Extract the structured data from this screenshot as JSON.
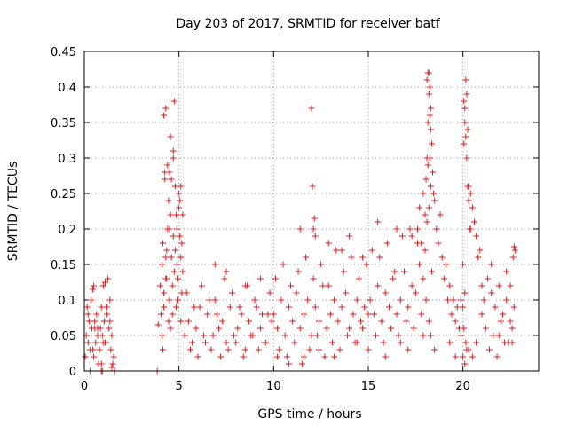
{
  "chart_data": {
    "type": "scatter",
    "title": "Day 203 of 2017, SRMTID for receiver batf",
    "xlabel": "GPS time / hours",
    "ylabel": "SRMTID / TECUs",
    "xlim": [
      0,
      24
    ],
    "ylim": [
      0,
      0.45
    ],
    "xticks": [
      0,
      5,
      10,
      15,
      20
    ],
    "xtick_labels": [
      "0",
      "5",
      "10",
      "15",
      "20"
    ],
    "yticks": [
      0,
      0.05,
      0.1,
      0.15,
      0.2,
      0.25,
      0.3,
      0.35,
      0.4,
      0.45
    ],
    "ytick_labels": [
      "0",
      "0.05",
      "0.1",
      "0.15",
      "0.2",
      "0.25",
      "0.3",
      "0.35",
      "0.4",
      "0.45"
    ],
    "grid": true,
    "marker": "plus",
    "color": "#e41a1c",
    "series": [
      {
        "name": "SRMTID",
        "x": [
          0.05,
          0.1,
          0.15,
          0.2,
          0.25,
          0.3,
          0.35,
          0.4,
          0.45,
          0.5,
          0.55,
          0.6,
          0.65,
          0.7,
          0.75,
          0.8,
          0.85,
          0.9,
          0.95,
          1.0,
          1.05,
          1.1,
          1.15,
          1.2,
          1.25,
          1.3,
          1.35,
          1.4,
          1.45,
          1.5,
          1.55,
          0.2,
          0.45,
          0.5,
          0.55,
          1.0,
          1.2,
          1.35,
          0.3,
          0.7,
          0.9,
          1.1,
          1.6,
          0.9,
          0.95,
          1.45,
          1.5,
          3.85,
          3.9,
          4.0,
          4.05,
          4.1,
          4.15,
          4.2,
          4.25,
          4.3,
          4.35,
          4.4,
          4.45,
          4.5,
          4.55,
          4.6,
          4.65,
          4.7,
          4.75,
          4.8,
          4.85,
          4.9,
          4.95,
          5.0,
          5.05,
          5.1,
          5.15,
          5.2,
          4.2,
          4.25,
          4.3,
          4.4,
          4.45,
          4.5,
          4.55,
          4.6,
          4.7,
          4.75,
          4.8,
          4.85,
          4.9,
          5.0,
          5.05,
          5.1,
          5.15,
          4.1,
          4.2,
          4.35,
          4.55,
          4.65,
          4.95,
          5.1,
          4.15,
          4.3,
          4.5,
          4.7,
          4.9,
          5.2,
          5.3,
          5.5,
          5.7,
          5.9,
          6.1,
          6.3,
          6.5,
          6.7,
          6.9,
          7.1,
          7.3,
          7.5,
          7.7,
          7.9,
          8.1,
          8.3,
          8.5,
          8.7,
          8.9,
          9.1,
          9.3,
          9.5,
          9.7,
          9.9,
          5.4,
          5.8,
          6.2,
          6.6,
          7.0,
          7.4,
          7.8,
          8.2,
          8.6,
          9.0,
          9.4,
          9.8,
          5.6,
          6.0,
          6.4,
          6.8,
          7.2,
          7.6,
          8.0,
          8.4,
          8.8,
          9.2,
          9.6,
          6.9,
          7.5,
          8.5,
          9.3,
          10.0,
          10.2,
          10.4,
          10.6,
          10.8,
          11.0,
          11.2,
          11.4,
          11.6,
          11.8,
          12.0,
          12.2,
          12.4,
          12.6,
          12.8,
          13.0,
          13.2,
          13.4,
          13.6,
          13.8,
          14.0,
          14.2,
          14.4,
          14.6,
          14.8,
          15.0,
          10.1,
          10.5,
          10.9,
          11.3,
          11.7,
          12.1,
          12.5,
          12.9,
          13.3,
          13.7,
          14.1,
          14.5,
          14.9,
          10.3,
          10.7,
          11.1,
          11.5,
          11.9,
          12.3,
          12.7,
          13.1,
          13.5,
          13.9,
          14.3,
          14.7,
          12.0,
          12.05,
          12.1,
          12.15,
          12.2,
          11.4,
          12.9,
          13.6,
          14.0,
          14.7,
          10.2,
          10.8,
          11.6,
          12.4,
          13.2,
          14.4,
          15.1,
          15.3,
          15.5,
          15.7,
          15.9,
          16.1,
          16.3,
          16.5,
          16.7,
          16.9,
          17.1,
          17.3,
          17.5,
          17.7,
          17.9,
          15.2,
          15.6,
          16.0,
          16.4,
          16.8,
          17.2,
          17.6,
          15.4,
          15.8,
          16.2,
          16.6,
          17.0,
          17.4,
          17.8,
          15.5,
          16.5,
          17.3,
          15.0,
          15.9,
          16.7,
          17.1,
          17.6,
          17.7,
          17.8,
          17.9,
          18.0,
          18.05,
          18.1,
          18.15,
          18.2,
          18.25,
          18.3,
          18.35,
          18.4,
          18.45,
          18.5,
          18.6,
          18.7,
          18.8,
          18.9,
          19.0,
          19.1,
          19.2,
          19.3,
          19.4,
          19.5,
          19.6,
          19.7,
          19.8,
          19.9,
          18.1,
          18.15,
          18.2,
          18.25,
          18.3,
          18.1,
          18.2,
          18.3,
          18.15,
          18.25,
          18.0,
          18.35,
          18.05,
          18.2,
          18.3,
          17.9,
          18.5,
          19.3,
          19.6,
          19.9,
          20.0,
          20.05,
          20.1,
          20.15,
          20.2,
          20.25,
          20.3,
          20.35,
          20.4,
          20.5,
          20.6,
          20.7,
          20.8,
          20.9,
          21.0,
          20.0,
          20.05,
          20.1,
          20.15,
          20.2,
          20.05,
          20.1,
          20.15,
          20.2,
          20.25,
          20.3,
          20.4,
          20.0,
          20.1,
          20.3,
          20.5,
          20.7,
          21.1,
          21.3,
          21.5,
          21.7,
          21.9,
          22.1,
          22.3,
          22.5,
          22.7,
          21.2,
          21.6,
          22.0,
          22.4,
          22.6,
          21.4,
          21.8,
          22.2,
          22.65,
          22.7,
          22.75,
          21.5,
          22.3,
          22.5,
          21.0,
          21.9,
          22.6
        ],
        "y": [
          0.02,
          0.05,
          0.09,
          0.04,
          0.07,
          0.03,
          0.1,
          0.06,
          0.115,
          0.02,
          0.07,
          0.04,
          0.08,
          0.05,
          0.01,
          0.03,
          0.06,
          0.09,
          0.05,
          0.12,
          0.07,
          0.125,
          0.04,
          0.08,
          0.13,
          0.06,
          0.1,
          0.03,
          0.05,
          0.01,
          0.02,
          0.08,
          0.03,
          0.12,
          0.06,
          0.04,
          0.09,
          0.07,
          0.0,
          0.06,
          0.01,
          0.04,
          0.0,
          0.0,
          0.0,
          0.005,
          0.01,
          0.0,
          0.065,
          0.12,
          0.08,
          0.15,
          0.18,
          0.11,
          0.28,
          0.13,
          0.17,
          0.2,
          0.07,
          0.1,
          0.22,
          0.16,
          0.12,
          0.3,
          0.14,
          0.17,
          0.09,
          0.2,
          0.13,
          0.25,
          0.19,
          0.16,
          0.11,
          0.14,
          0.36,
          0.27,
          0.37,
          0.29,
          0.24,
          0.28,
          0.33,
          0.27,
          0.31,
          0.38,
          0.26,
          0.22,
          0.15,
          0.23,
          0.24,
          0.26,
          0.18,
          0.05,
          0.09,
          0.13,
          0.06,
          0.08,
          0.1,
          0.07,
          0.03,
          0.16,
          0.2,
          0.19,
          0.15,
          0.22,
          0.05,
          0.07,
          0.04,
          0.06,
          0.09,
          0.05,
          0.08,
          0.03,
          0.1,
          0.06,
          0.07,
          0.04,
          0.09,
          0.05,
          0.06,
          0.08,
          0.03,
          0.07,
          0.05,
          0.09,
          0.06,
          0.04,
          0.08,
          0.07,
          0.11,
          0.09,
          0.12,
          0.1,
          0.08,
          0.13,
          0.11,
          0.09,
          0.12,
          0.1,
          0.08,
          0.11,
          0.03,
          0.02,
          0.04,
          0.05,
          0.02,
          0.03,
          0.04,
          0.02,
          0.05,
          0.03,
          0.04,
          0.15,
          0.14,
          0.12,
          0.13,
          0.08,
          0.06,
          0.1,
          0.05,
          0.09,
          0.07,
          0.11,
          0.06,
          0.08,
          0.1,
          0.05,
          0.09,
          0.07,
          0.12,
          0.06,
          0.08,
          0.1,
          0.07,
          0.09,
          0.11,
          0.06,
          0.08,
          0.1,
          0.07,
          0.09,
          0.08,
          0.13,
          0.15,
          0.12,
          0.14,
          0.16,
          0.13,
          0.15,
          0.12,
          0.17,
          0.14,
          0.16,
          0.13,
          0.15,
          0.03,
          0.02,
          0.04,
          0.01,
          0.03,
          0.05,
          0.02,
          0.04,
          0.03,
          0.05,
          0.04,
          0.06,
          0.37,
          0.26,
          0.2,
          0.215,
          0.19,
          0.2,
          0.18,
          0.17,
          0.19,
          0.16,
          0.02,
          0.01,
          0.02,
          0.03,
          0.02,
          0.04,
          0.1,
          0.08,
          0.12,
          0.07,
          0.11,
          0.09,
          0.13,
          0.08,
          0.1,
          0.14,
          0.09,
          0.12,
          0.11,
          0.15,
          0.13,
          0.17,
          0.16,
          0.18,
          0.14,
          0.19,
          0.2,
          0.18,
          0.05,
          0.04,
          0.06,
          0.05,
          0.07,
          0.06,
          0.08,
          0.21,
          0.2,
          0.19,
          0.03,
          0.02,
          0.04,
          0.03,
          0.2,
          0.23,
          0.18,
          0.25,
          0.22,
          0.27,
          0.3,
          0.35,
          0.42,
          0.4,
          0.37,
          0.32,
          0.28,
          0.25,
          0.24,
          0.2,
          0.18,
          0.22,
          0.16,
          0.13,
          0.15,
          0.1,
          0.12,
          0.08,
          0.1,
          0.07,
          0.09,
          0.06,
          0.05,
          0.41,
          0.42,
          0.39,
          0.36,
          0.34,
          0.21,
          0.23,
          0.26,
          0.29,
          0.3,
          0.17,
          0.14,
          0.1,
          0.07,
          0.05,
          0.05,
          0.03,
          0.04,
          0.02,
          0.1,
          0.15,
          0.32,
          0.37,
          0.41,
          0.39,
          0.34,
          0.26,
          0.2,
          0.25,
          0.23,
          0.21,
          0.19,
          0.16,
          0.17,
          0.12,
          0.09,
          0.06,
          0.11,
          0.04,
          0.03,
          0.38,
          0.35,
          0.33,
          0.3,
          0.26,
          0.24,
          0.2,
          0.02,
          0.01,
          0.03,
          0.02,
          0.04,
          0.1,
          0.13,
          0.11,
          0.09,
          0.12,
          0.08,
          0.1,
          0.07,
          0.09,
          0.06,
          0.05,
          0.07,
          0.04,
          0.06,
          0.03,
          0.02,
          0.04,
          0.16,
          0.175,
          0.17,
          0.15,
          0.14,
          0.12,
          0.08,
          0.05,
          0.04
        ]
      }
    ]
  }
}
